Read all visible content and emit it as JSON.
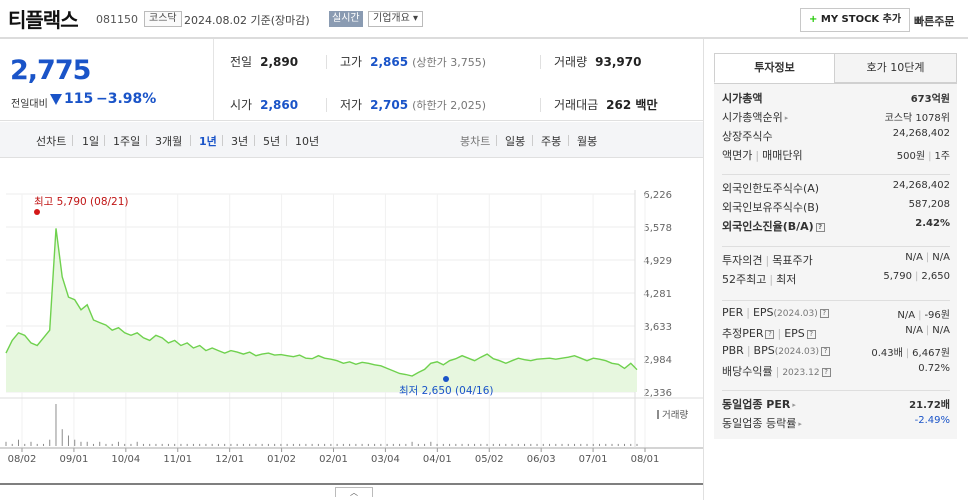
{
  "header": {
    "name": "티플랙스",
    "code": "081150",
    "market": "코스닥",
    "base_date": "2024.08.02  기준(장마감)",
    "realtime": "실시간",
    "overview": "기업개요",
    "mystock": "MY STOCK 추가",
    "quick_order": "빠른주문"
  },
  "summary": {
    "price": "2,775",
    "change_label": "전일대비",
    "change": "115",
    "change_pct": "−3.98%",
    "prev_close_label": "전일",
    "prev_close": "2,890",
    "high_label": "고가",
    "high": "2,865",
    "upper_limit": "(상한가 3,755)",
    "volume_label": "거래량",
    "volume": "93,970",
    "open_label": "시가",
    "open": "2,860",
    "low_label": "저가",
    "low": "2,705",
    "lower_limit": "(하한가 2,025)",
    "amount_label": "거래대금",
    "amount": "262 백만"
  },
  "tabs": {
    "line_chart": "선차트",
    "periods": [
      "1일",
      "1주일",
      "3개월",
      "1년",
      "3년",
      "5년",
      "10년"
    ],
    "active_period": "1년",
    "candle_chart": "봉차트",
    "candles": [
      "일봉",
      "주봉",
      "월봉"
    ]
  },
  "chart_data": {
    "type": "area",
    "y_ticks": [
      "6,226",
      "5,578",
      "4,929",
      "4,281",
      "3,633",
      "2,984",
      "2,336"
    ],
    "ylim": [
      2336,
      6226
    ],
    "x_ticks": [
      "08/02",
      "09/01",
      "10/04",
      "11/01",
      "12/01",
      "01/02",
      "02/01",
      "03/04",
      "04/01",
      "05/02",
      "06/03",
      "07/01",
      "08/01"
    ],
    "high_annotation": "최고 5,790 (08/21)",
    "low_annotation": "최저 2,650 (04/16)",
    "volume_label": "거래량",
    "line_color": "#6fd14e",
    "fill_color": "#e7f7df",
    "series": [
      {
        "values": [
          3100,
          3350,
          3500,
          3450,
          3300,
          3250,
          3400,
          3550,
          5550,
          4600,
          4200,
          4150,
          3950,
          4050,
          3750,
          3700,
          3650,
          3550,
          3600,
          3500,
          3450,
          3500,
          3400,
          3350,
          3450,
          3400,
          3300,
          3350,
          3250,
          3300,
          3200,
          3250,
          3150,
          3200,
          3150,
          3100,
          3150,
          3120,
          3080,
          3120,
          3050,
          3080,
          3100,
          3060,
          3070,
          3050,
          3030,
          3060,
          3000,
          2990,
          3050,
          3000,
          2980,
          2950,
          2900,
          2930,
          2880,
          2920,
          2900,
          2870,
          2850,
          2800,
          2750,
          2700,
          2680,
          2650,
          2720,
          2780,
          2900,
          2930,
          2870,
          2950,
          2990,
          3050,
          3000,
          2950,
          3020,
          3080,
          2990,
          2950,
          2900,
          2950,
          3000,
          2970,
          2950,
          2980,
          2990,
          3000,
          2980,
          3000,
          3020,
          3050,
          3000,
          2950,
          3000,
          2980,
          2950,
          2900,
          2880,
          2800,
          2900,
          2775
        ]
      }
    ],
    "volume": [
      2,
      1,
      3,
      1,
      2,
      1,
      1,
      3,
      20,
      8,
      5,
      3,
      2,
      2,
      1,
      2,
      1,
      1,
      2,
      1,
      1,
      2,
      1,
      1,
      1,
      1,
      1,
      1,
      1,
      1,
      1,
      1,
      1,
      1,
      1,
      1,
      1,
      1,
      1,
      1,
      1,
      1,
      1,
      1,
      1,
      1,
      1,
      1,
      1,
      1,
      1,
      1,
      1,
      1,
      1,
      1,
      1,
      1,
      1,
      1,
      1,
      1,
      1,
      1,
      1,
      2,
      1,
      1,
      2,
      1,
      1,
      1,
      1,
      1,
      1,
      1,
      1,
      1,
      1,
      1,
      1,
      1,
      1,
      1,
      1,
      1,
      1,
      1,
      1,
      1,
      1,
      1,
      1,
      1,
      1,
      1,
      1,
      1,
      1,
      1,
      1,
      1
    ]
  },
  "right_panel": {
    "tab_invest": "투자정보",
    "tab_hoga": "호가 10단계",
    "groups": [
      [
        {
          "k": "시가총액",
          "v": "673억원",
          "bold": true
        },
        {
          "k": "시가총액순위",
          "v": "코스닥 1078위",
          "arrow": true
        },
        {
          "k": "상장주식수",
          "v": "24,268,402"
        },
        {
          "k": "액면가",
          "k2": "매매단위",
          "v": "500원",
          "v2": "1주"
        }
      ],
      [
        {
          "k": "외국인한도주식수(A)",
          "v": "24,268,402"
        },
        {
          "k": "외국인보유주식수(B)",
          "v": "587,208"
        },
        {
          "k": "외국인소진율(B/A)",
          "v": "2.42%",
          "bold": true,
          "q": true
        }
      ],
      [
        {
          "k": "투자의견",
          "k2": "목표주가",
          "v": "N/A",
          "v2": "N/A"
        },
        {
          "k": "52주최고",
          "k2": "최저",
          "v": "5,790",
          "v2": "2,650"
        }
      ],
      [
        {
          "k": "PER",
          "k2": "EPS",
          "k2sub": "(2024.03)",
          "q": true,
          "v": "N/A",
          "v2": "-96원"
        },
        {
          "k": "추정PER",
          "k2": "EPS",
          "q": true,
          "q1": true,
          "v": "N/A",
          "v2": "N/A"
        },
        {
          "k": "PBR",
          "k2": "BPS",
          "k2sub": "(2024.03)",
          "q": true,
          "v": "0.43배",
          "v2": "6,467원"
        },
        {
          "k": "배당수익률",
          "k2sub": "2023.12",
          "q": true,
          "v": "0.72%"
        }
      ],
      [
        {
          "k": "동일업종 PER",
          "v": "21.72배",
          "bold": true,
          "arrow": true
        },
        {
          "k": "동일업종 등락률",
          "v": "-2.49%",
          "arrow": true,
          "blue": true
        }
      ]
    ]
  }
}
